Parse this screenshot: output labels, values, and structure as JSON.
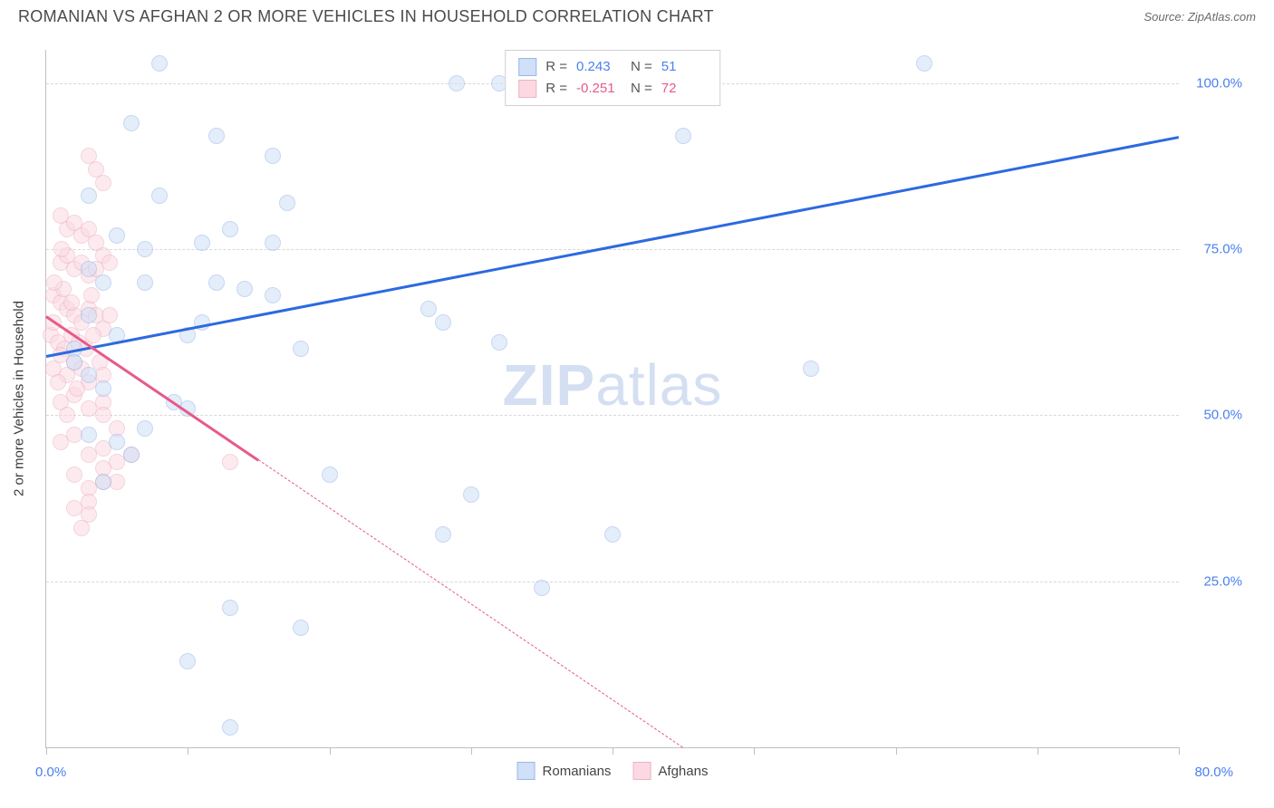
{
  "title": "ROMANIAN VS AFGHAN 2 OR MORE VEHICLES IN HOUSEHOLD CORRELATION CHART",
  "source_label": "Source: ",
  "source_value": "ZipAtlas.com",
  "watermark": {
    "bold": "ZIP",
    "light": "atlas"
  },
  "y_axis_label": "2 or more Vehicles in Household",
  "chart": {
    "type": "scatter",
    "xlim": [
      0,
      80
    ],
    "ylim": [
      0,
      105
    ],
    "x_ticks": [
      0,
      10,
      20,
      30,
      40,
      50,
      60,
      70,
      80
    ],
    "x_tick_labels": {
      "0": "0.0%",
      "80": "80.0%"
    },
    "y_gridlines": [
      25,
      50,
      75,
      100
    ],
    "y_tick_labels": {
      "25": "25.0%",
      "50": "50.0%",
      "75": "75.0%",
      "100": "100.0%"
    },
    "background_color": "#ffffff",
    "grid_color": "#d8d8d8",
    "axis_color": "#c0c0c0",
    "tick_label_color": "#4a80f0",
    "tick_label_fontsize": 15,
    "marker_radius": 8,
    "marker_stroke_width": 1.5,
    "series": {
      "romanians": {
        "label": "Romanians",
        "fill": "#cfe0f7",
        "stroke": "#9ab7e6",
        "fill_opacity": 0.55,
        "trend_color": "#2b6ae0",
        "r_label": "R = ",
        "r_value": "0.243",
        "n_label": "N = ",
        "n_value": "51",
        "stat_color": "#4a80f0",
        "trend": {
          "x1": 0,
          "y1": 59,
          "x2": 80,
          "y2": 92,
          "solid_until_x": 80
        },
        "points": [
          [
            8,
            103
          ],
          [
            62,
            103
          ],
          [
            32,
            100
          ],
          [
            29,
            100
          ],
          [
            6,
            94
          ],
          [
            12,
            92
          ],
          [
            45,
            92
          ],
          [
            3,
            83
          ],
          [
            8,
            83
          ],
          [
            16,
            89
          ],
          [
            17,
            82
          ],
          [
            5,
            77
          ],
          [
            7,
            75
          ],
          [
            11,
            76
          ],
          [
            13,
            78
          ],
          [
            16,
            76
          ],
          [
            4,
            70
          ],
          [
            7,
            70
          ],
          [
            12,
            70
          ],
          [
            14,
            69
          ],
          [
            16,
            68
          ],
          [
            3,
            65
          ],
          [
            2,
            60
          ],
          [
            10,
            62
          ],
          [
            11,
            64
          ],
          [
            18,
            60
          ],
          [
            27,
            66
          ],
          [
            28,
            64
          ],
          [
            32,
            61
          ],
          [
            2,
            58
          ],
          [
            3,
            56
          ],
          [
            4,
            54
          ],
          [
            9,
            52
          ],
          [
            10,
            51
          ],
          [
            54,
            57
          ],
          [
            3,
            47
          ],
          [
            5,
            46
          ],
          [
            6,
            44
          ],
          [
            20,
            41
          ],
          [
            30,
            38
          ],
          [
            4,
            40
          ],
          [
            28,
            32
          ],
          [
            40,
            32
          ],
          [
            35,
            24
          ],
          [
            13,
            21
          ],
          [
            18,
            18
          ],
          [
            10,
            13
          ],
          [
            13,
            3
          ],
          [
            3,
            72
          ],
          [
            5,
            62
          ],
          [
            7,
            48
          ]
        ]
      },
      "afghans": {
        "label": "Afghans",
        "fill": "#fcd9e2",
        "stroke": "#ecb2c3",
        "fill_opacity": 0.55,
        "trend_color": "#e75a8b",
        "r_label": "R = ",
        "r_value": "-0.251",
        "n_label": "N = ",
        "n_value": "72",
        "stat_color": "#e75a8b",
        "trend": {
          "x1": 0,
          "y1": 65,
          "x2": 45,
          "y2": 0,
          "solid_until_x": 15
        },
        "points": [
          [
            3,
            89
          ],
          [
            3.5,
            87
          ],
          [
            4,
            85
          ],
          [
            1,
            80
          ],
          [
            1.5,
            78
          ],
          [
            2,
            79
          ],
          [
            2.5,
            77
          ],
          [
            3,
            78
          ],
          [
            3.5,
            76
          ],
          [
            1,
            73
          ],
          [
            1.5,
            74
          ],
          [
            2,
            72
          ],
          [
            2.5,
            73
          ],
          [
            3,
            71
          ],
          [
            3.5,
            72
          ],
          [
            4,
            74
          ],
          [
            4.5,
            73
          ],
          [
            0.5,
            68
          ],
          [
            1,
            67
          ],
          [
            1.5,
            66
          ],
          [
            2,
            65
          ],
          [
            2.5,
            64
          ],
          [
            3,
            66
          ],
          [
            3.5,
            65
          ],
          [
            4,
            63
          ],
          [
            4.5,
            65
          ],
          [
            0.3,
            62
          ],
          [
            0.8,
            61
          ],
          [
            1.3,
            60
          ],
          [
            1.8,
            62
          ],
          [
            2.3,
            61
          ],
          [
            2.8,
            60
          ],
          [
            3.3,
            62
          ],
          [
            3.8,
            58
          ],
          [
            0.5,
            57
          ],
          [
            1,
            59
          ],
          [
            1.5,
            56
          ],
          [
            2,
            58
          ],
          [
            2.5,
            57
          ],
          [
            3,
            55
          ],
          [
            4,
            56
          ],
          [
            1,
            52
          ],
          [
            2,
            53
          ],
          [
            3,
            51
          ],
          [
            4,
            52
          ],
          [
            5,
            48
          ],
          [
            4,
            50
          ],
          [
            1,
            46
          ],
          [
            2,
            47
          ],
          [
            3,
            44
          ],
          [
            4,
            45
          ],
          [
            5,
            43
          ],
          [
            6,
            44
          ],
          [
            5,
            40
          ],
          [
            2,
            41
          ],
          [
            3,
            39
          ],
          [
            4,
            40
          ],
          [
            3,
            37
          ],
          [
            4,
            42
          ],
          [
            13,
            43
          ],
          [
            2,
            36
          ],
          [
            3,
            35
          ],
          [
            2.5,
            33
          ],
          [
            0.5,
            64
          ],
          [
            1.2,
            69
          ],
          [
            1.8,
            67
          ],
          [
            0.8,
            55
          ],
          [
            1.5,
            50
          ],
          [
            2.2,
            54
          ],
          [
            3.2,
            68
          ],
          [
            0.6,
            70
          ],
          [
            1.1,
            75
          ]
        ]
      }
    }
  },
  "legend_top": {
    "border_color": "#d0d0d0",
    "background": "#ffffff"
  }
}
